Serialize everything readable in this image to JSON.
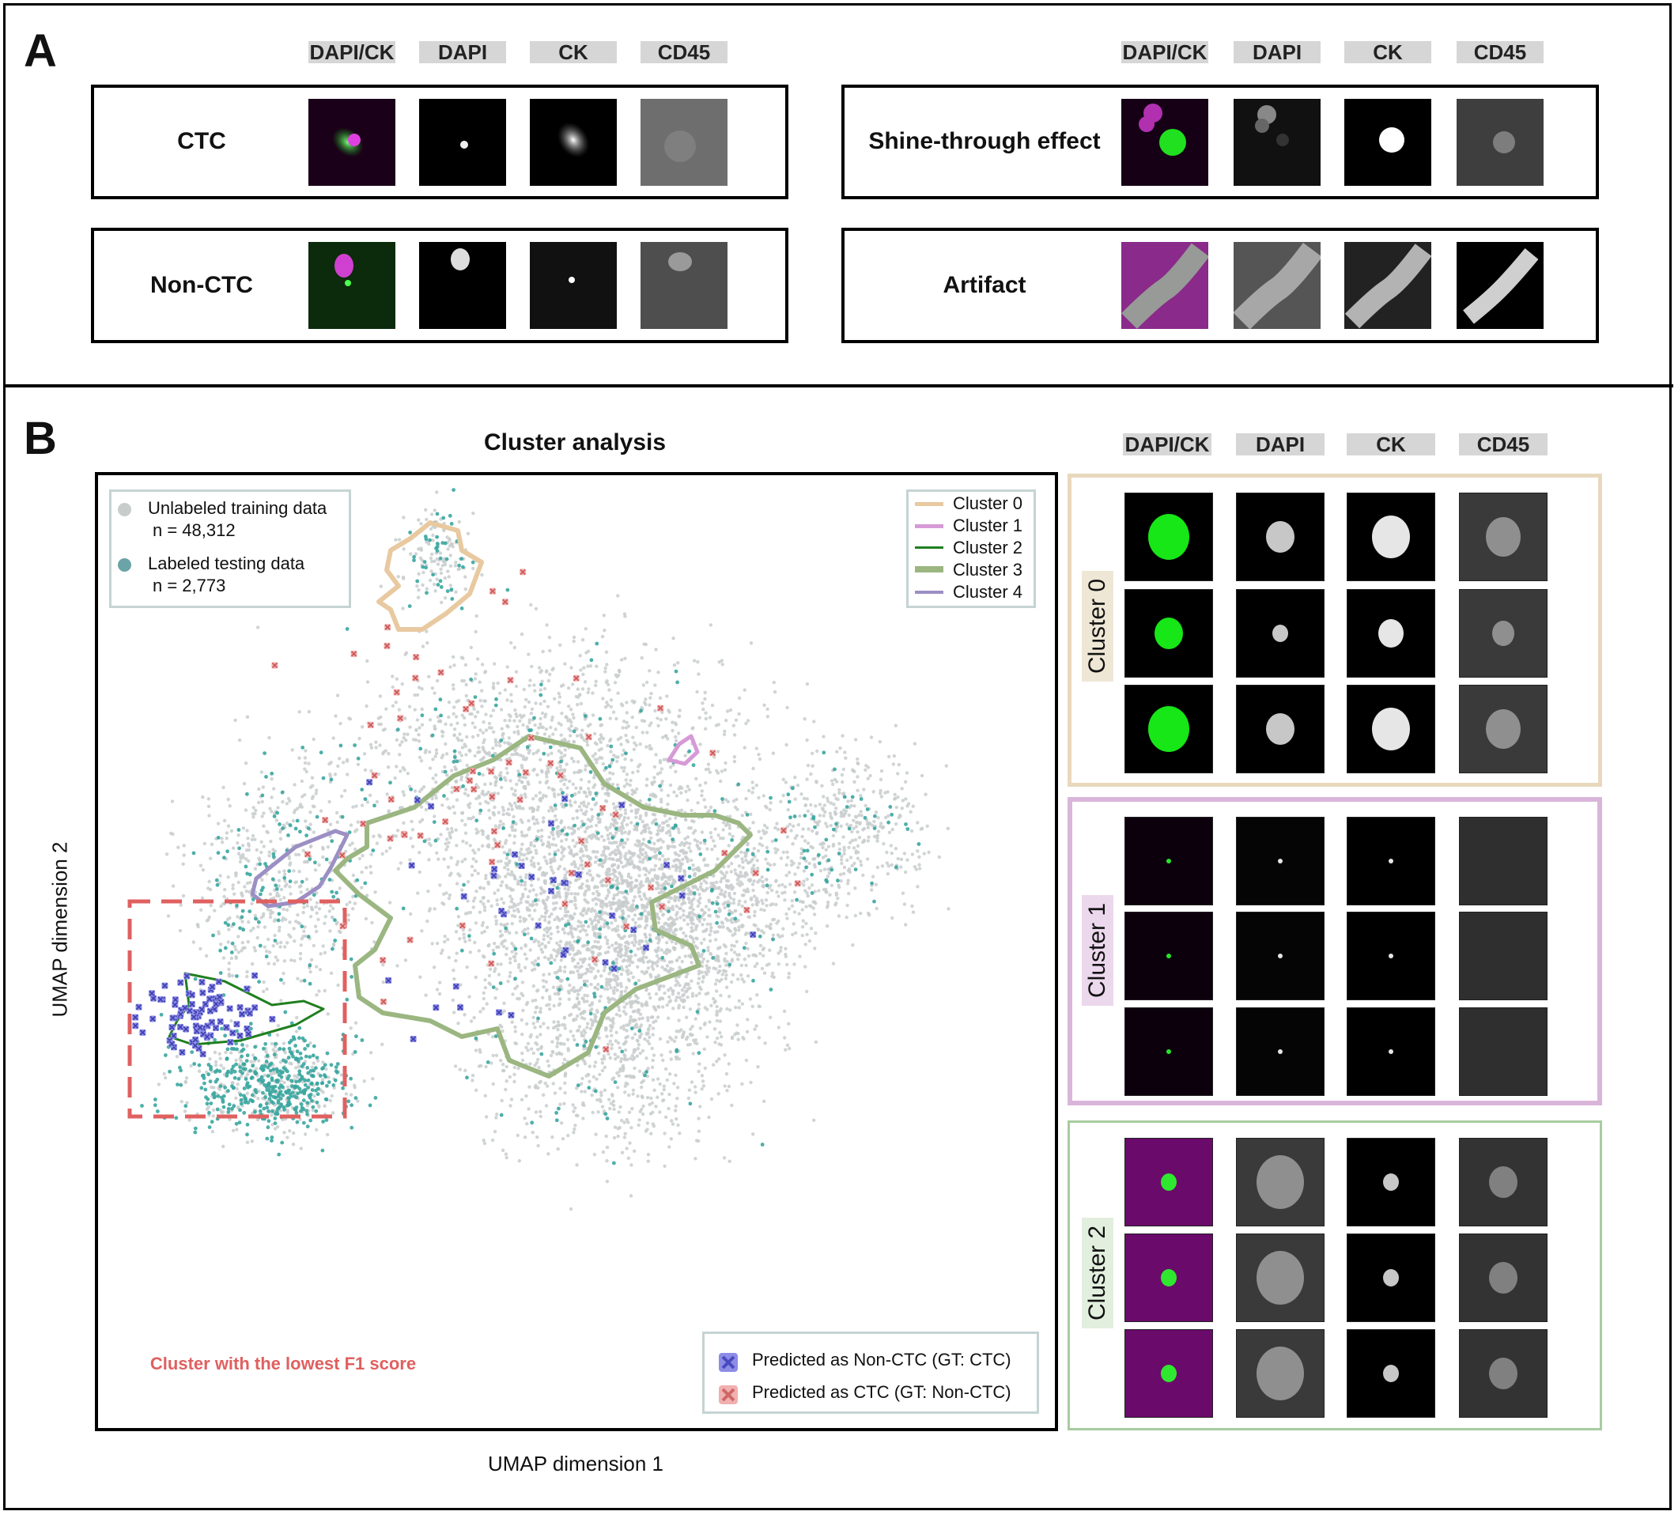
{
  "panel_a": {
    "letter": "A",
    "channels": [
      "DAPI/CK",
      "DAPI",
      "CK",
      "CD45"
    ],
    "categories": [
      {
        "label": "CTC"
      },
      {
        "label": "Non-CTC"
      },
      {
        "label": "Shine-through effect"
      },
      {
        "label": "Artifact"
      }
    ]
  },
  "panel_b": {
    "letter": "B",
    "title": "Cluster analysis",
    "channels": [
      "DAPI/CK",
      "DAPI",
      "CK",
      "CD45"
    ],
    "data_legend": {
      "unlabeled_label": "Unlabeled training data",
      "unlabeled_n": "n = 48,312",
      "labeled_label": "Labeled testing data",
      "labeled_n": "n = 2,773",
      "unlabeled_color": "#c8cdcc",
      "labeled_color": "#3aa6a0"
    },
    "cluster_legend": [
      {
        "name": "Cluster 0",
        "color": "#e8c9a0"
      },
      {
        "name": "Cluster 1",
        "color": "#d69ad6"
      },
      {
        "name": "Cluster 2",
        "color": "#1f7f1f"
      },
      {
        "name": "Cluster 3",
        "color": "#9bb681"
      },
      {
        "name": "Cluster 4",
        "color": "#9b8fc4"
      }
    ],
    "pred_legend": {
      "noncTC_label": "Predicted as Non-CTC (GT: CTC)",
      "ctc_label": "Predicted as CTC (GT: Non-CTC)",
      "noncTC_color": "#5b5bd6",
      "ctc_color": "#e58a8a"
    },
    "lowest_f1_label": "Cluster with the lowest F1 score",
    "xlabel": "UMAP dimension 1",
    "ylabel": "UMAP dimension 2",
    "cluster_panels": [
      {
        "label": "Cluster 0",
        "color": "#e8d8bd"
      },
      {
        "label": "Cluster 1",
        "color": "#d9b6d9"
      },
      {
        "label": "Cluster 2",
        "color": "#a8cca0"
      }
    ]
  }
}
